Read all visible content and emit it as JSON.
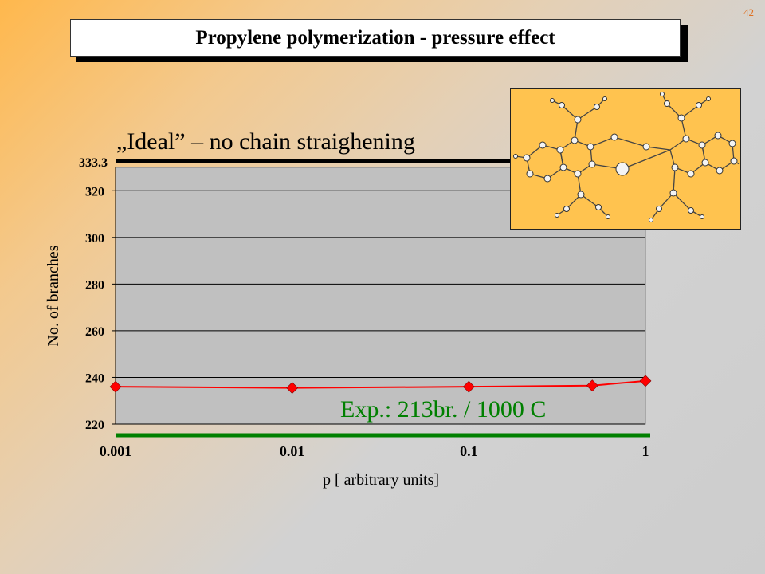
{
  "slide_number": "42",
  "title": "Propylene polymerization - pressure effect",
  "ideal_label": "„Ideal”  – no chain straighening",
  "ideal_value_label": "333.3",
  "exp_label": "Exp.: 213br. / 1000 C",
  "colors": {
    "series": "#ff0000",
    "ideal_line": "#000000",
    "exp_line": "#008000",
    "plot_bg": "#c0c0c0",
    "molecule_bg": "#ffc34f"
  },
  "chart_data": {
    "type": "line",
    "x_scale": "log",
    "xlabel": "p [ arbitrary units]",
    "ylabel": "No. of branches",
    "x_ticks": [
      "0.001",
      "0.01",
      "0.1",
      "1"
    ],
    "y_ticks": [
      220,
      240,
      260,
      280,
      300,
      320
    ],
    "xlim": [
      0.001,
      1
    ],
    "ylim": [
      220,
      330
    ],
    "grid": true,
    "series": [
      {
        "x": [
          0.001,
          0.01,
          0.1,
          0.5,
          1
        ],
        "y": [
          236,
          235.5,
          236,
          236.5,
          238.5
        ]
      }
    ],
    "reference_lines": [
      {
        "label": "„Ideal”  – no chain straighening",
        "value_label": "333.3",
        "y": 333.3
      },
      {
        "label": "Exp.: 213br. / 1000 C",
        "y": 213
      }
    ]
  }
}
